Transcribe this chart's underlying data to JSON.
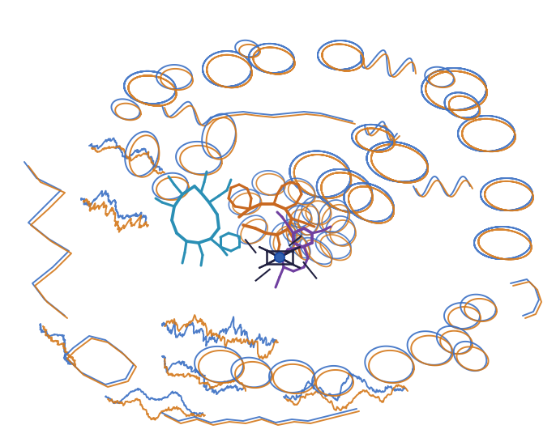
{
  "background_color": "#ffffff",
  "protein1_color": "#3a6fc4",
  "protein2_color": "#d4781a",
  "erythromycin_color": "#2a8fb5",
  "ketoconazole_color": "#c86820",
  "purple_color": "#7040a0",
  "iron_color": "#3060b0",
  "dark_color": "#202040",
  "figsize": [
    6.86,
    5.46
  ],
  "dpi": 100,
  "lw_backbone": 1.4,
  "lw_ligand": 2.2
}
